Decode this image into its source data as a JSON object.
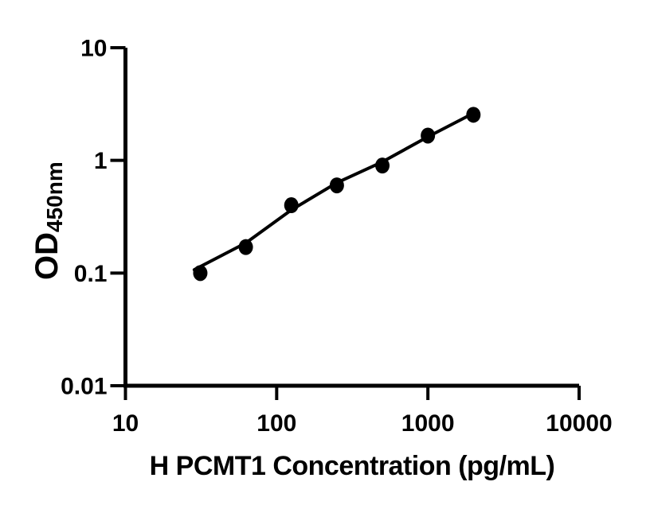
{
  "figure": {
    "background": "#ffffff",
    "ink_color": "#000000",
    "description": "ELISA standard curve, filled black circles with fitted line on log-log axes"
  },
  "chart_data": {
    "type": "scatter",
    "title": "",
    "xlabel": "H PCMT1 Concentration (pg/mL)",
    "ylabel_main": "OD",
    "ylabel_subscript": "450nm",
    "x_scale": "log10",
    "y_scale": "log10",
    "xlim": [
      10,
      10000
    ],
    "ylim": [
      0.01,
      10
    ],
    "x_ticks": [
      10,
      100,
      1000,
      10000
    ],
    "y_ticks": [
      10,
      1,
      0.1,
      0.01
    ],
    "x_tick_labels": [
      "10",
      "100",
      "1000",
      "10000"
    ],
    "y_tick_labels": [
      "10",
      "1",
      "0.1",
      "0.01"
    ],
    "grid": false,
    "legend": "none",
    "series": [
      {
        "name": "standard points",
        "marker": "filled-ellipse",
        "marker_rx": 9,
        "marker_ry": 10,
        "color": "#000000",
        "x": [
          31.25,
          62.5,
          125,
          250,
          500,
          1000,
          2000
        ],
        "y": [
          0.1,
          0.17,
          0.4,
          0.6,
          0.9,
          1.66,
          2.54
        ]
      }
    ],
    "fit_line": {
      "name": "fitted standard curve",
      "color": "#000000",
      "stroke_width": 4,
      "x": [
        28.5,
        62.5,
        125,
        250,
        500,
        1000,
        2000
      ],
      "y": [
        0.107,
        0.185,
        0.363,
        0.633,
        0.97,
        1.62,
        2.62
      ]
    }
  }
}
